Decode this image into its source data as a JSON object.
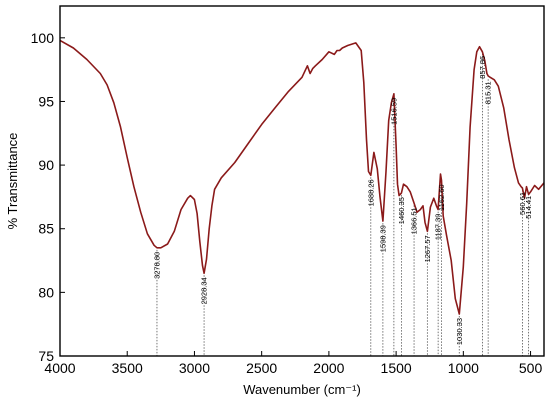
{
  "chart_data": {
    "type": "line",
    "title": "",
    "xlabel": "Wavenumber (cm⁻¹)",
    "ylabel": "% Transmittance",
    "xlim": [
      4000,
      400
    ],
    "ylim": [
      75,
      102.5
    ],
    "x_reversed": true,
    "grid": false,
    "x_ticks": [
      "4000",
      "3500",
      "3000",
      "2500",
      "2000",
      "1500",
      "1000",
      "500"
    ],
    "y_ticks": [
      "75",
      "80",
      "85",
      "90",
      "95",
      "100"
    ],
    "series": [
      {
        "name": "",
        "color": "#8b1a1a",
        "x": [
          4000,
          3900,
          3800,
          3700,
          3650,
          3600,
          3550,
          3500,
          3450,
          3400,
          3350,
          3300,
          3278.8,
          3250,
          3200,
          3150,
          3100,
          3050,
          3030,
          3000,
          2980,
          2960,
          2940,
          2928.34,
          2910,
          2890,
          2870,
          2850,
          2800,
          2700,
          2600,
          2500,
          2400,
          2300,
          2200,
          2160,
          2140,
          2120,
          2100,
          2050,
          2000,
          1960,
          1940,
          1920,
          1900,
          1860,
          1800,
          1760,
          1740,
          1720,
          1705,
          1688.26,
          1665,
          1640,
          1620,
          1598.39,
          1575,
          1555,
          1535,
          1516.59,
          1500,
          1490,
          1478,
          1460.35,
          1445,
          1420,
          1395,
          1366.51,
          1345,
          1320,
          1300,
          1285,
          1267.57,
          1245,
          1220,
          1200,
          1187.39,
          1170,
          1162.6,
          1150,
          1125,
          1090,
          1060,
          1030.33,
          1000,
          975,
          950,
          920,
          900,
          880,
          857.86,
          840,
          825,
          815.31,
          800,
          770,
          740,
          700,
          660,
          620,
          590,
          570,
          560.61,
          545,
          530,
          514.41,
          500,
          470,
          440,
          400
        ],
        "y": [
          99.8,
          99.2,
          98.3,
          97.2,
          96.3,
          94.9,
          93.0,
          90.6,
          88.3,
          86.3,
          84.6,
          83.7,
          83.5,
          83.5,
          83.8,
          84.8,
          86.5,
          87.4,
          87.6,
          87.3,
          86.2,
          84.0,
          82.1,
          81.5,
          82.6,
          85.0,
          86.8,
          88.1,
          89.0,
          90.2,
          91.7,
          93.2,
          94.5,
          95.8,
          96.9,
          97.8,
          97.2,
          97.6,
          97.8,
          98.3,
          98.9,
          98.7,
          99.0,
          99.0,
          99.2,
          99.4,
          99.6,
          99.0,
          96.5,
          92.0,
          89.5,
          89.2,
          91.0,
          89.7,
          87.5,
          85.6,
          89.5,
          93.5,
          94.9,
          95.6,
          91.5,
          88.5,
          87.6,
          87.8,
          88.5,
          88.3,
          87.9,
          87.0,
          86.3,
          86.5,
          86.8,
          85.5,
          84.8,
          86.7,
          87.4,
          86.8,
          86.5,
          89.3,
          88.8,
          86.0,
          84.5,
          82.5,
          79.5,
          78.3,
          82.0,
          87.0,
          93.0,
          97.5,
          98.9,
          99.3,
          98.9,
          98.2,
          97.2,
          97.0,
          96.9,
          96.7,
          96.2,
          94.5,
          92.0,
          89.8,
          88.6,
          88.3,
          88.2,
          87.4,
          88.3,
          87.7,
          87.9,
          88.4,
          88.1,
          88.6
        ]
      }
    ],
    "peaks": [
      {
        "label": "3278.80",
        "x": 3278.8,
        "y": 83.5
      },
      {
        "label": "2928.34",
        "x": 2928.34,
        "y": 81.5
      },
      {
        "label": "1688.26",
        "x": 1688.26,
        "y": 89.2
      },
      {
        "label": "1598.39",
        "x": 1598.39,
        "y": 85.6
      },
      {
        "label": "1516.59",
        "x": 1516.59,
        "y": 95.6
      },
      {
        "label": "1460.35",
        "x": 1460.35,
        "y": 87.8
      },
      {
        "label": "1366.51",
        "x": 1366.51,
        "y": 87.0
      },
      {
        "label": "1267.57",
        "x": 1267.57,
        "y": 84.8
      },
      {
        "label": "1187.39",
        "x": 1187.39,
        "y": 86.5
      },
      {
        "label": "1162.60",
        "x": 1162.6,
        "y": 88.8
      },
      {
        "label": "1030.33",
        "x": 1030.33,
        "y": 78.3
      },
      {
        "label": "857.86",
        "x": 857.86,
        "y": 98.9
      },
      {
        "label": "815.31",
        "x": 815.31,
        "y": 96.9
      },
      {
        "label": "560.61",
        "x": 560.61,
        "y": 88.2
      },
      {
        "label": "514.41",
        "x": 514.41,
        "y": 87.9
      }
    ]
  }
}
